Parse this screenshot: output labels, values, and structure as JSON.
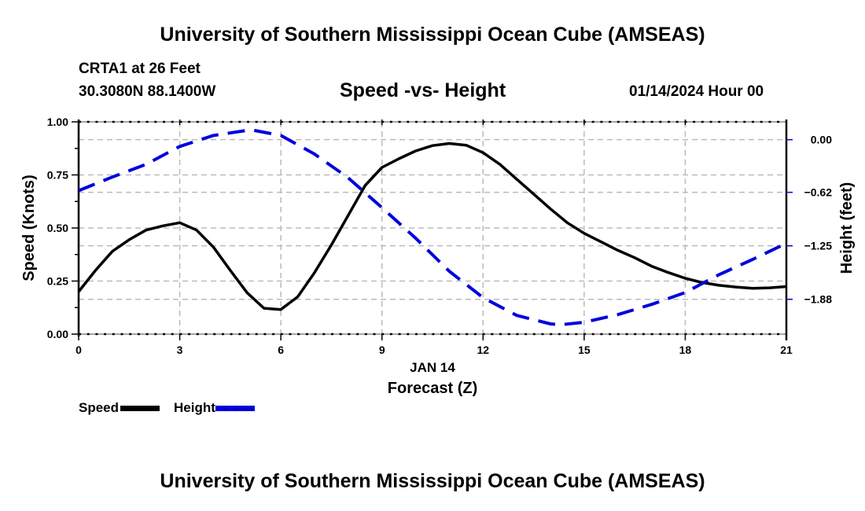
{
  "header": {
    "main_title": "University of Southern Mississippi Ocean Cube (AMSEAS)",
    "station_name": "CRTA1 at 26 Feet",
    "station_coords": "30.3080N  88.1400W",
    "chart_title": "Speed -vs- Height",
    "datetime": "01/14/2024 Hour 00"
  },
  "footer": {
    "title": "University of Southern Mississippi Ocean Cube (AMSEAS)"
  },
  "legend": {
    "items": [
      {
        "label": "Speed",
        "color": "#000000",
        "style": "solid"
      },
      {
        "label": "Height",
        "color": "#0000dd",
        "style": "dashed"
      }
    ]
  },
  "chart_data": {
    "type": "line",
    "title": "Speed -vs- Height",
    "xlabel": "Forecast (Z)",
    "xlabel_date": "JAN 14",
    "ylabel": "Speed (Knots)",
    "y2label": "Height (feet)",
    "xlim": [
      0,
      21
    ],
    "ylim": [
      0,
      1.0
    ],
    "y2lim": [
      -2.29,
      0.21
    ],
    "xticks": [
      0,
      3,
      6,
      9,
      12,
      15,
      18,
      21
    ],
    "xtick_labels": [
      "0",
      "3",
      "6",
      "9",
      "12",
      "15",
      "18",
      "21"
    ],
    "yticks": [
      0,
      0.25,
      0.5,
      0.75,
      1.0
    ],
    "ytick_labels": [
      "0.00",
      "0.25",
      "0.50",
      "0.75",
      "1.00"
    ],
    "y2ticks": [
      0,
      -0.62,
      -1.25,
      -1.88
    ],
    "y2tick_labels": [
      "0.00",
      "−0.62",
      "−1.25",
      "−1.88"
    ],
    "grid": true,
    "legend_position": "bottom-left",
    "colors": {
      "speed": "#000000",
      "height": "#0000dd",
      "grid": "#bbbbbb",
      "y2tick": "#0000dd"
    },
    "series": [
      {
        "name": "Speed",
        "axis": "left",
        "x": [
          0,
          0.5,
          1,
          1.5,
          2,
          2.5,
          3,
          3.5,
          4,
          4.5,
          5,
          5.5,
          6,
          6.5,
          7,
          7.5,
          8,
          8.5,
          9,
          9.5,
          10,
          10.5,
          11,
          11.5,
          12,
          12.5,
          13,
          13.5,
          14,
          14.5,
          15,
          15.5,
          16,
          16.5,
          17,
          17.5,
          18,
          18.5,
          19,
          19.5,
          20,
          20.5,
          21
        ],
        "values": [
          0.2,
          0.3,
          0.39,
          0.445,
          0.49,
          0.51,
          0.525,
          0.49,
          0.41,
          0.3,
          0.195,
          0.122,
          0.116,
          0.176,
          0.29,
          0.42,
          0.56,
          0.7,
          0.785,
          0.826,
          0.863,
          0.888,
          0.898,
          0.89,
          0.855,
          0.8,
          0.73,
          0.66,
          0.59,
          0.525,
          0.475,
          0.435,
          0.395,
          0.36,
          0.32,
          0.29,
          0.263,
          0.243,
          0.23,
          0.222,
          0.216,
          0.218,
          0.224
        ]
      },
      {
        "name": "Height",
        "axis": "right",
        "x": [
          0,
          1,
          2,
          3,
          4,
          5,
          5.2,
          6,
          7,
          8,
          9,
          10,
          11,
          12,
          13,
          14,
          14.3,
          15,
          16,
          17,
          18,
          19,
          20,
          21
        ],
        "values": [
          -0.6,
          -0.44,
          -0.29,
          -0.08,
          0.05,
          0.11,
          0.11,
          0.05,
          -0.17,
          -0.45,
          -0.8,
          -1.16,
          -1.55,
          -1.86,
          -2.07,
          -2.17,
          -2.18,
          -2.15,
          -2.06,
          -1.94,
          -1.8,
          -1.59,
          -1.41,
          -1.22
        ]
      }
    ]
  }
}
